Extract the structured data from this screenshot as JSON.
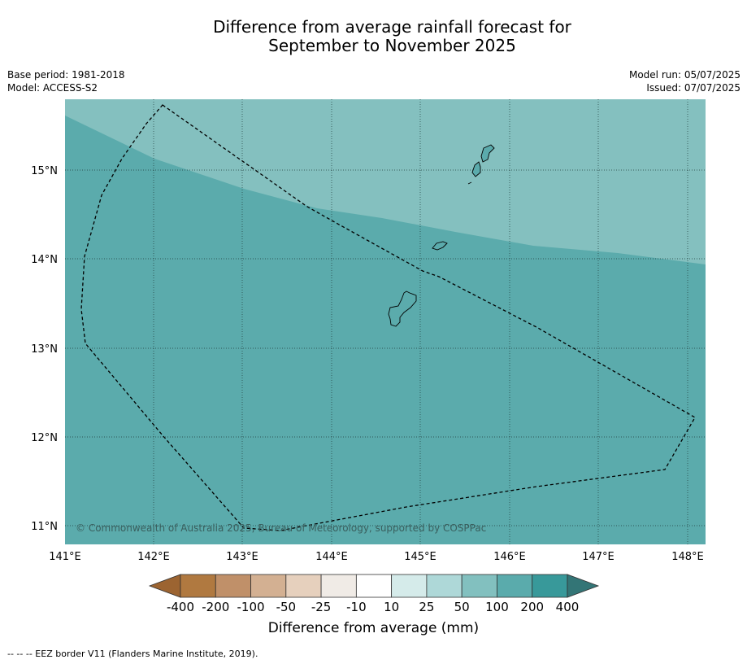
{
  "title": {
    "line1": "Difference from average rainfall forecast for",
    "line2": "September to November 2025"
  },
  "meta": {
    "base_period": "Base period: 1981-2018",
    "model": "Model: ACCESS-S2",
    "model_run": "Model run: 05/07/2025",
    "issued": "Issued: 07/07/2025"
  },
  "map": {
    "lon_ticks": [
      "141°E",
      "142°E",
      "143°E",
      "144°E",
      "145°E",
      "146°E",
      "147°E",
      "148°E"
    ],
    "lat_ticks": [
      "15°N",
      "14°N",
      "13°N",
      "12°N",
      "11°N"
    ],
    "copyright": "© Commonwealth of Australia 2025, Bureau of Meteorology, supported by COSPPac",
    "colors": {
      "zone_50_100": "#84c0bf",
      "zone_100_200": "#5babac",
      "eez_border": "#000000"
    }
  },
  "colorbar": {
    "title": "Difference from average (mm)",
    "labels": [
      "-400",
      "-200",
      "-100",
      "-50",
      "-25",
      "-10",
      "10",
      "25",
      "50",
      "100",
      "200",
      "400"
    ],
    "colors": [
      "#9c6431",
      "#b07940",
      "#c09069",
      "#d3b092",
      "#e6d0bd",
      "#f0ebe6",
      "#ffffff",
      "#d5ebea",
      "#aed8d8",
      "#82c0bf",
      "#5aabac",
      "#38999a",
      "#337576"
    ]
  },
  "footnote": "--  --  -- EEZ border V11 (Flanders Marine Institute, 2019)."
}
